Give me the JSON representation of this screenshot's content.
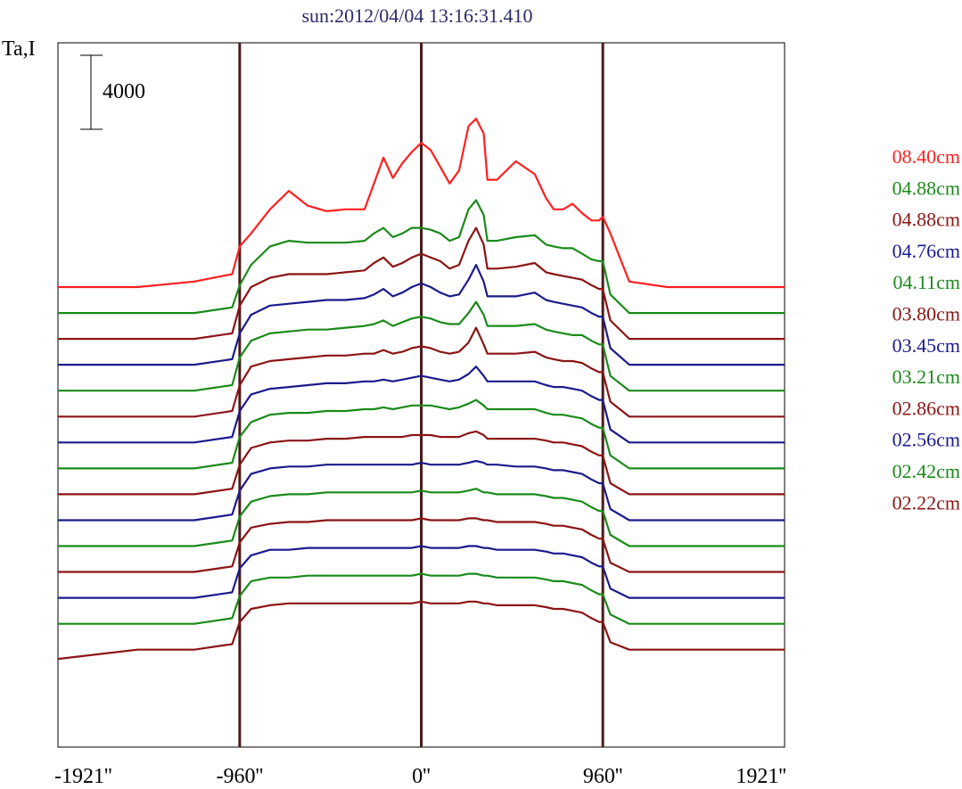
{
  "chart_data": {
    "type": "line",
    "title": "sun:2012/04/04 13:16:31.410",
    "ylabel": "Ta,I",
    "scale_bar_label": "4000",
    "scale_bar_value": 4000,
    "xlim": [
      -1921,
      1921
    ],
    "xticks": [
      {
        "value": -1921,
        "label": "-1921''"
      },
      {
        "value": -960,
        "label": "-960''"
      },
      {
        "value": 0,
        "label": "0''"
      },
      {
        "value": 960,
        "label": "960''"
      },
      {
        "value": 1921,
        "label": "1921''"
      }
    ],
    "vertical_lines": [
      -960,
      0,
      960
    ],
    "legend_position": "right",
    "grid": false,
    "profile_x": [
      -1921,
      -1500,
      -1200,
      -1000,
      -960,
      -900,
      -800,
      -700,
      -600,
      -500,
      -400,
      -300,
      -250,
      -200,
      -150,
      -100,
      -50,
      0,
      50,
      100,
      150,
      200,
      250,
      290,
      330,
      350,
      400,
      500,
      600,
      660,
      700,
      750,
      800,
      850,
      900,
      940,
      960,
      1000,
      1100,
      1300,
      1500,
      1700,
      1921
    ],
    "series": [
      {
        "name": "08.40cm",
        "color": "#ff2020",
        "offset": 0,
        "y": [
          0,
          0,
          300,
          700,
          2200,
          2900,
          4200,
          5200,
          4400,
          4100,
          4200,
          4200,
          5600,
          7000,
          5900,
          6700,
          7300,
          7800,
          7400,
          6500,
          5600,
          6300,
          8700,
          9100,
          8300,
          5800,
          5800,
          6800,
          6100,
          4800,
          4200,
          4200,
          4500,
          4000,
          3600,
          3600,
          3800,
          2900,
          300,
          0,
          0,
          0,
          0
        ]
      },
      {
        "name": "04.88cm",
        "color": "#1a8a1a",
        "offset": -1400,
        "y": [
          0,
          0,
          0,
          300,
          1500,
          2600,
          3600,
          3900,
          3800,
          3800,
          3800,
          3900,
          4300,
          4600,
          4100,
          4300,
          4600,
          4600,
          4500,
          4300,
          3900,
          4100,
          5600,
          6100,
          5300,
          3900,
          3900,
          4100,
          4200,
          3700,
          3600,
          3500,
          3500,
          3200,
          2900,
          2800,
          2800,
          1000,
          0,
          0,
          0,
          0,
          0
        ]
      },
      {
        "name": "04.88cm",
        "color": "#8b1414",
        "offset": -2800,
        "y": [
          0,
          0,
          0,
          300,
          1800,
          2800,
          3300,
          3500,
          3500,
          3500,
          3600,
          3700,
          4100,
          4400,
          3900,
          4100,
          4400,
          4600,
          4400,
          4200,
          3800,
          4000,
          5300,
          6000,
          5100,
          3800,
          3800,
          3900,
          4100,
          3600,
          3500,
          3400,
          3300,
          3200,
          2900,
          2700,
          2700,
          1000,
          0,
          0,
          0,
          0,
          0
        ]
      },
      {
        "name": "04.76cm",
        "color": "#1a1a8c",
        "offset": -4200,
        "y": [
          0,
          0,
          0,
          300,
          1700,
          2700,
          3200,
          3300,
          3400,
          3500,
          3500,
          3600,
          3800,
          4100,
          3700,
          3900,
          4200,
          4400,
          4200,
          3900,
          3700,
          3800,
          4600,
          5400,
          4500,
          3700,
          3700,
          3700,
          3900,
          3500,
          3400,
          3300,
          3200,
          3100,
          2800,
          2600,
          2600,
          900,
          0,
          0,
          0,
          0,
          0
        ]
      },
      {
        "name": "04.11cm",
        "color": "#1a8a1a",
        "offset": -5600,
        "y": [
          0,
          0,
          0,
          300,
          1800,
          2700,
          3100,
          3200,
          3300,
          3300,
          3400,
          3500,
          3600,
          3800,
          3500,
          3700,
          3900,
          4000,
          3900,
          3700,
          3600,
          3600,
          4200,
          4800,
          4100,
          3500,
          3500,
          3500,
          3600,
          3300,
          3200,
          3100,
          3000,
          3000,
          2700,
          2500,
          2500,
          800,
          0,
          0,
          0,
          0,
          0
        ]
      },
      {
        "name": "03.80cm",
        "color": "#8b1414",
        "offset": -7000,
        "y": [
          0,
          0,
          0,
          300,
          1700,
          2700,
          3000,
          3100,
          3200,
          3300,
          3300,
          3400,
          3400,
          3600,
          3400,
          3500,
          3700,
          3800,
          3700,
          3500,
          3400,
          3500,
          4000,
          4800,
          3900,
          3400,
          3400,
          3400,
          3500,
          3200,
          3100,
          3000,
          3000,
          2900,
          2600,
          2400,
          2400,
          800,
          0,
          0,
          0,
          0,
          0
        ]
      },
      {
        "name": "03.45cm",
        "color": "#1a1a8c",
        "offset": -8400,
        "y": [
          0,
          0,
          0,
          300,
          1700,
          2600,
          2900,
          3000,
          3100,
          3200,
          3200,
          3300,
          3300,
          3400,
          3300,
          3400,
          3500,
          3600,
          3500,
          3400,
          3300,
          3400,
          3700,
          4100,
          3600,
          3300,
          3300,
          3300,
          3300,
          3100,
          3000,
          3000,
          2900,
          2800,
          2500,
          2300,
          2300,
          700,
          0,
          0,
          0,
          0,
          0
        ]
      },
      {
        "name": "03.21cm",
        "color": "#1a8a1a",
        "offset": -9800,
        "y": [
          0,
          0,
          0,
          300,
          1700,
          2500,
          2900,
          3000,
          3000,
          3100,
          3100,
          3200,
          3200,
          3300,
          3200,
          3300,
          3400,
          3400,
          3400,
          3300,
          3200,
          3300,
          3500,
          3700,
          3400,
          3200,
          3200,
          3200,
          3200,
          3000,
          2900,
          2900,
          2800,
          2700,
          2400,
          2200,
          2200,
          700,
          0,
          0,
          0,
          0,
          0
        ]
      },
      {
        "name": "02.86cm",
        "color": "#8b1414",
        "offset": -11200,
        "y": [
          0,
          0,
          0,
          300,
          1600,
          2500,
          2800,
          2900,
          2900,
          3000,
          3000,
          3100,
          3100,
          3100,
          3100,
          3100,
          3200,
          3200,
          3200,
          3100,
          3100,
          3100,
          3300,
          3400,
          3200,
          3000,
          3000,
          3000,
          3000,
          2900,
          2800,
          2800,
          2700,
          2600,
          2300,
          2100,
          2100,
          600,
          0,
          0,
          0,
          0,
          0
        ]
      },
      {
        "name": "02.56cm",
        "color": "#1a1a8c",
        "offset": -12600,
        "y": [
          0,
          0,
          0,
          300,
          1600,
          2500,
          2800,
          2900,
          2900,
          3000,
          3000,
          3000,
          3000,
          3000,
          3000,
          3000,
          3000,
          3100,
          3000,
          3000,
          3000,
          3000,
          3100,
          3200,
          3100,
          3000,
          3000,
          2900,
          2900,
          2800,
          2700,
          2700,
          2600,
          2500,
          2200,
          2000,
          2000,
          600,
          0,
          0,
          0,
          0,
          0
        ]
      },
      {
        "name": "02.42cm",
        "color": "#1a8a1a",
        "offset": -14000,
        "y": [
          0,
          0,
          0,
          300,
          1600,
          2400,
          2700,
          2800,
          2800,
          2900,
          2900,
          2900,
          2900,
          2900,
          2900,
          2900,
          2900,
          3000,
          2900,
          2900,
          2900,
          2900,
          3000,
          3100,
          2900,
          2900,
          2800,
          2800,
          2800,
          2700,
          2600,
          2600,
          2500,
          2400,
          2100,
          1900,
          1900,
          600,
          0,
          0,
          0,
          0,
          0
        ]
      },
      {
        "name": "02.22cm",
        "color": "#8b1414",
        "offset": -15400,
        "y": [
          0,
          0,
          0,
          300,
          1600,
          2400,
          2600,
          2700,
          2700,
          2800,
          2800,
          2800,
          2800,
          2800,
          2800,
          2800,
          2800,
          2900,
          2800,
          2800,
          2800,
          2800,
          2900,
          2900,
          2800,
          2800,
          2700,
          2700,
          2700,
          2600,
          2500,
          2500,
          2400,
          2300,
          2000,
          1800,
          1800,
          500,
          0,
          0,
          0,
          0,
          0
        ]
      },
      {
        "name": "",
        "color": "#1a1a8c",
        "offset": -16800,
        "y": [
          0,
          0,
          0,
          300,
          1600,
          2300,
          2600,
          2600,
          2700,
          2700,
          2700,
          2700,
          2700,
          2700,
          2700,
          2700,
          2700,
          2800,
          2700,
          2700,
          2700,
          2700,
          2800,
          2800,
          2700,
          2700,
          2600,
          2600,
          2600,
          2500,
          2400,
          2400,
          2300,
          2200,
          1900,
          1700,
          1700,
          500,
          0,
          0,
          0,
          0,
          0
        ]
      },
      {
        "name": "",
        "color": "#1a8a1a",
        "offset": -18200,
        "y": [
          0,
          0,
          0,
          300,
          1500,
          2300,
          2500,
          2500,
          2600,
          2600,
          2600,
          2600,
          2600,
          2600,
          2600,
          2600,
          2600,
          2700,
          2600,
          2600,
          2600,
          2600,
          2700,
          2700,
          2600,
          2600,
          2500,
          2500,
          2500,
          2400,
          2300,
          2300,
          2200,
          2100,
          1800,
          1600,
          1600,
          500,
          0,
          0,
          0,
          0,
          0
        ]
      },
      {
        "name": "",
        "color": "#8b1414",
        "offset": -19600,
        "y": [
          -500,
          0,
          0,
          300,
          1500,
          2200,
          2400,
          2500,
          2500,
          2500,
          2500,
          2500,
          2500,
          2500,
          2500,
          2500,
          2500,
          2600,
          2500,
          2500,
          2500,
          2500,
          2600,
          2600,
          2500,
          2500,
          2400,
          2400,
          2400,
          2300,
          2200,
          2200,
          2100,
          2000,
          1700,
          1500,
          1500,
          400,
          0,
          0,
          0,
          0,
          0
        ]
      }
    ]
  }
}
